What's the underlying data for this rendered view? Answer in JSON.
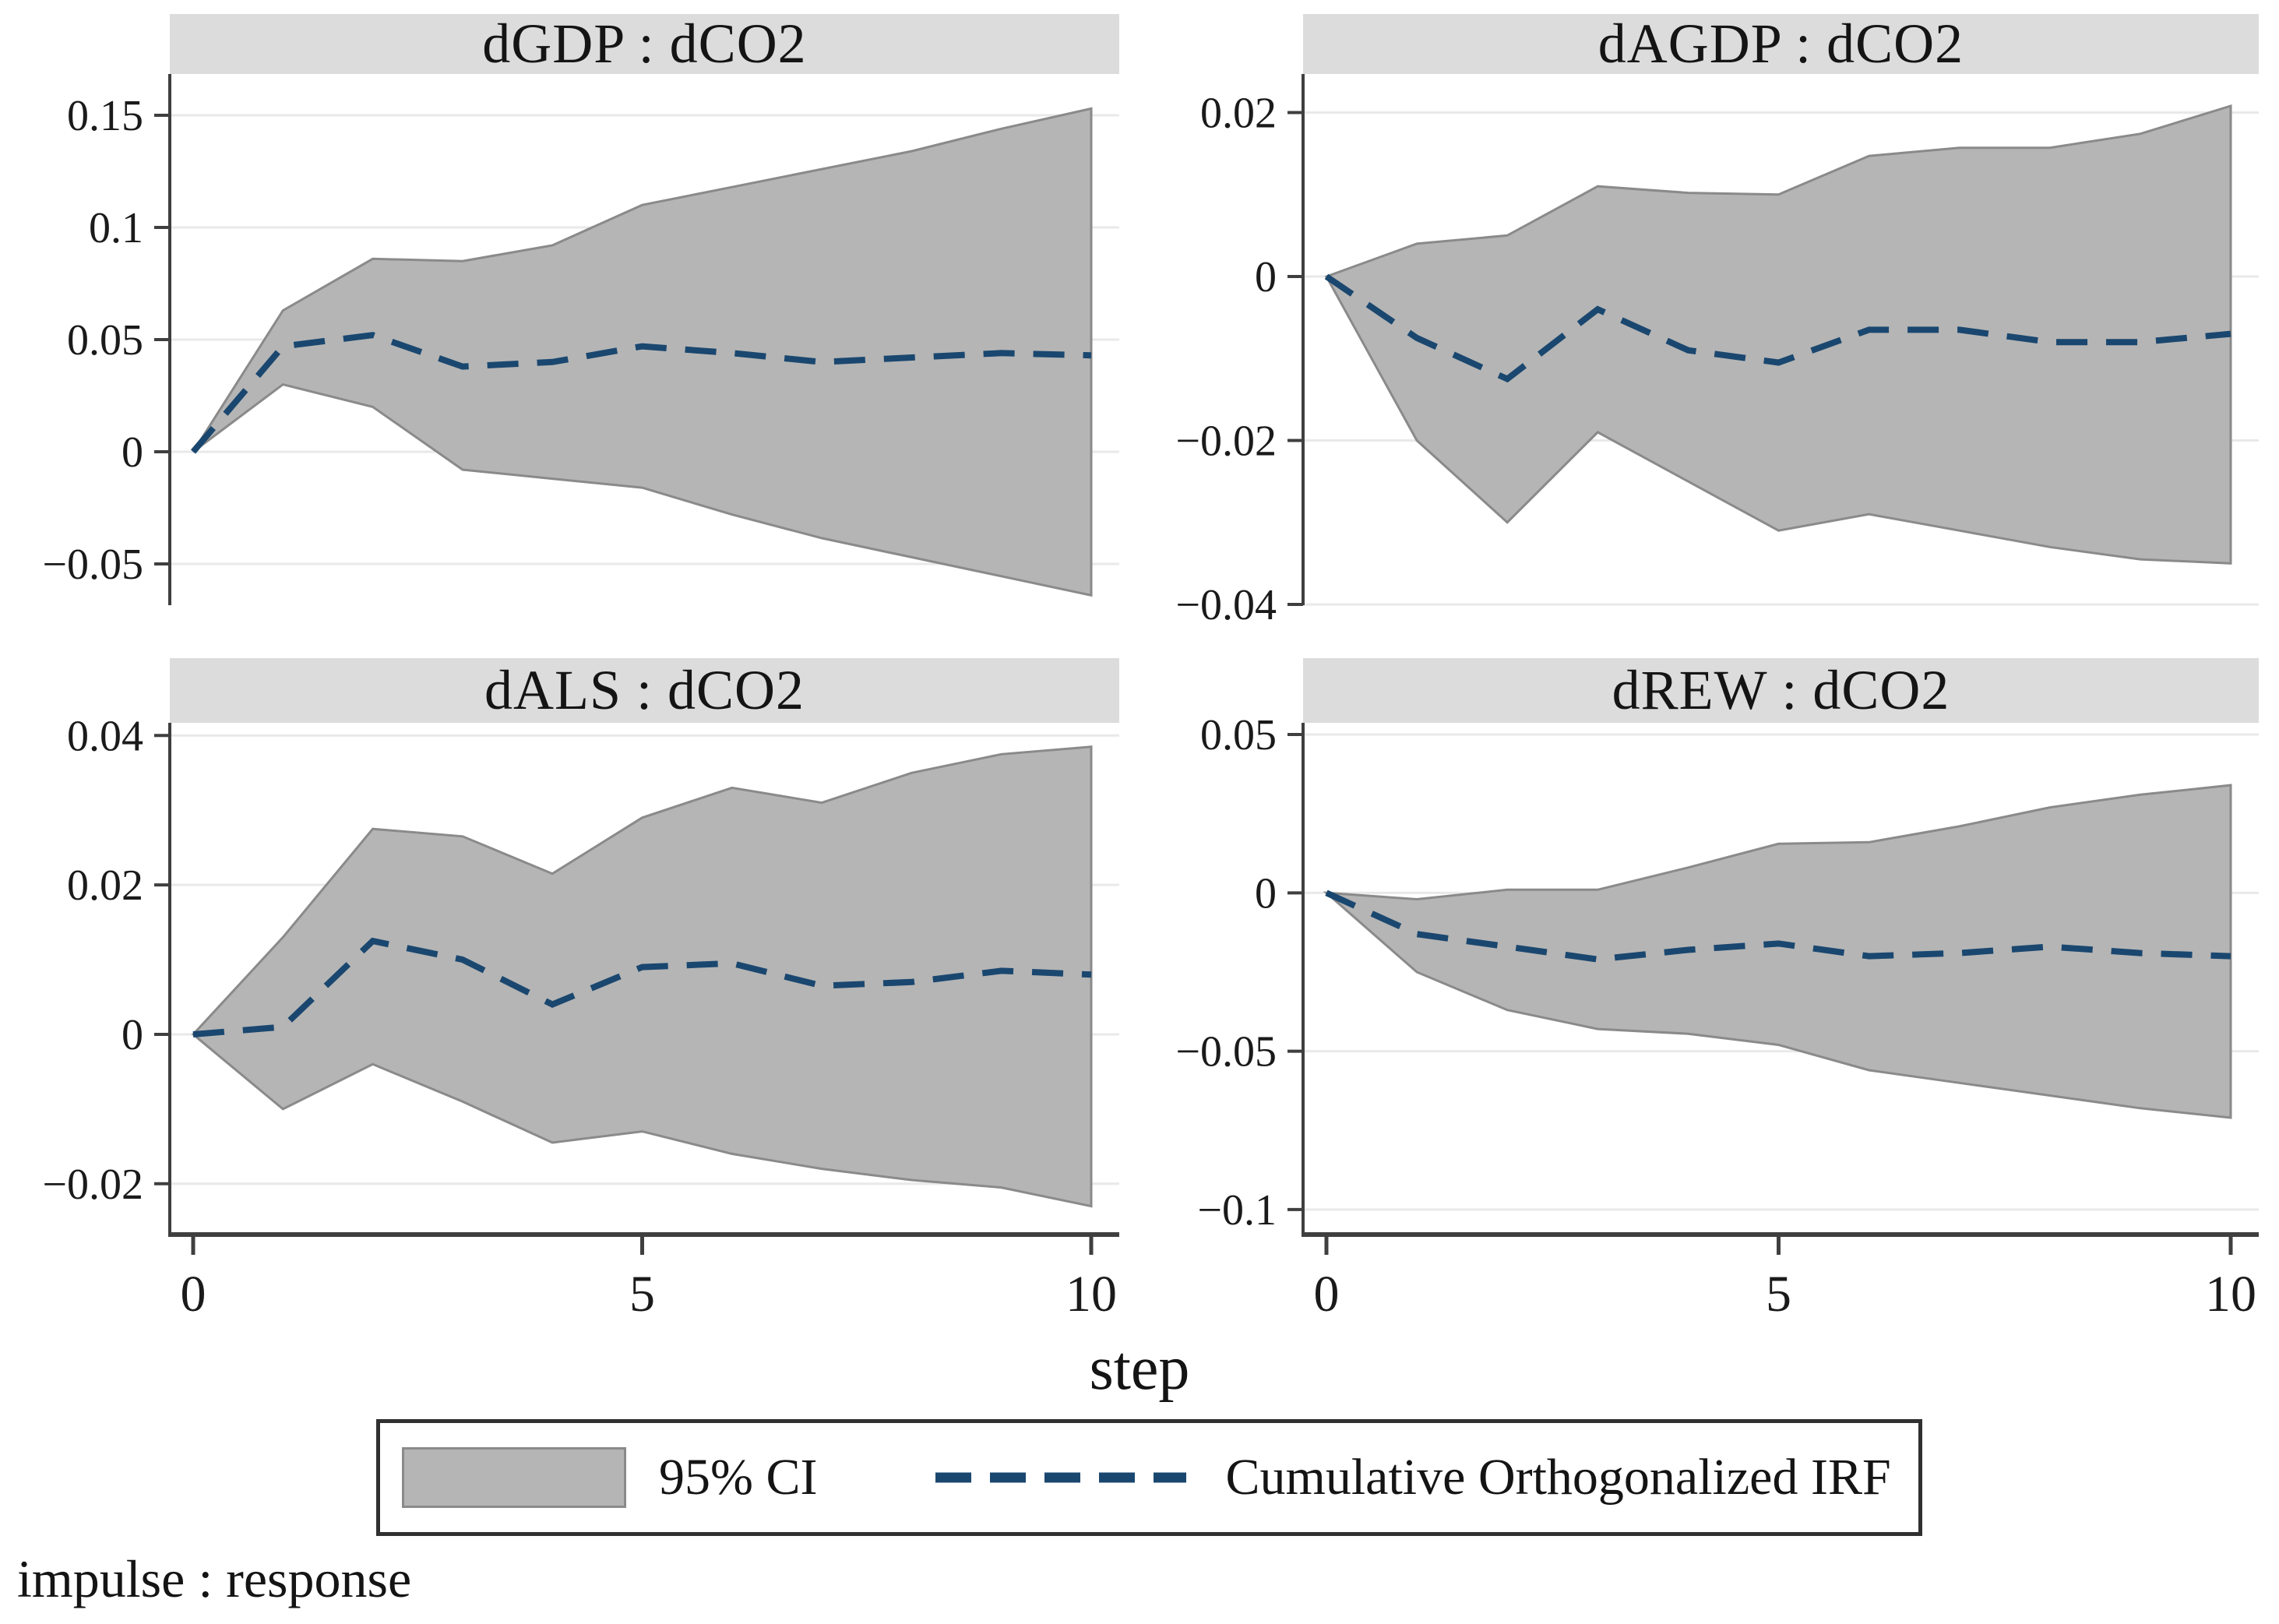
{
  "figure": {
    "xlabel": "step",
    "footnote": "impulse : response",
    "legend": {
      "ci_label": "95% CI",
      "irf_label": "Cumulative Orthogonalized IRF"
    },
    "colors": {
      "ci_fill": "#b5b5b5",
      "ci_edge": "#8a8a8a",
      "irf_line": "#1a476f",
      "axis": "#3f3f3f",
      "grid": "#e9e9e9",
      "strip_bg": "#dcdcdc",
      "text": "#1a1a1a",
      "legend_border": "#303030"
    }
  },
  "chart_data": [
    {
      "type": "area",
      "title": "dGDP : dCO2",
      "xlabel": "step",
      "x": [
        0,
        1,
        2,
        3,
        4,
        5,
        6,
        7,
        8,
        9,
        10
      ],
      "xticks": [
        {
          "value": 0,
          "label": "0"
        },
        {
          "value": 5,
          "label": "5"
        },
        {
          "value": 10,
          "label": "10"
        }
      ],
      "show_x_labels": false,
      "ylim": [
        -0.0684,
        0.1684
      ],
      "yticks": [
        {
          "value": 0.15,
          "label": "0.15"
        },
        {
          "value": 0.1,
          "label": "0.1"
        },
        {
          "value": 0.05,
          "label": "0.05"
        },
        {
          "value": 0,
          "label": "0"
        },
        {
          "value": -0.05,
          "label": "−0.05"
        }
      ],
      "series": [
        {
          "name": "95% CI upper",
          "values": [
            0,
            0.063,
            0.086,
            0.085,
            0.092,
            0.11,
            0.118,
            0.126,
            0.134,
            0.144,
            0.153
          ]
        },
        {
          "name": "95% CI lower",
          "values": [
            0,
            0.03,
            0.02,
            -0.008,
            -0.012,
            -0.016,
            -0.028,
            -0.0385,
            -0.047,
            -0.0555,
            -0.064
          ]
        },
        {
          "name": "Cumulative Orthogonalized IRF",
          "values": [
            0,
            0.047,
            0.052,
            0.038,
            0.04,
            0.047,
            0.044,
            0.04,
            0.042,
            0.044,
            0.043
          ]
        }
      ]
    },
    {
      "type": "area",
      "title": "dAGDP : dCO2",
      "xlabel": "step",
      "x": [
        0,
        1,
        2,
        3,
        4,
        5,
        6,
        7,
        8,
        9,
        10
      ],
      "xticks": [
        {
          "value": 0,
          "label": "0"
        },
        {
          "value": 5,
          "label": "5"
        },
        {
          "value": 10,
          "label": "10"
        }
      ],
      "show_x_labels": false,
      "ylim": [
        -0.0401,
        0.0247
      ],
      "yticks": [
        {
          "value": 0.02,
          "label": "0.02"
        },
        {
          "value": 0,
          "label": "0"
        },
        {
          "value": -0.02,
          "label": "−0.02"
        },
        {
          "value": -0.04,
          "label": "−0.04"
        }
      ],
      "series": [
        {
          "name": "95% CI upper",
          "values": [
            0,
            0.004,
            0.005,
            0.011,
            0.0102,
            0.01,
            0.0147,
            0.0157,
            0.0157,
            0.0174,
            0.0208
          ]
        },
        {
          "name": "95% CI lower",
          "values": [
            0,
            -0.02,
            -0.03,
            -0.019,
            -0.025,
            -0.031,
            -0.029,
            -0.031,
            -0.033,
            -0.0345,
            -0.035
          ]
        },
        {
          "name": "Cumulative Orthogonalized IRF",
          "values": [
            0,
            -0.0075,
            -0.0125,
            -0.004,
            -0.009,
            -0.0105,
            -0.0065,
            -0.0065,
            -0.008,
            -0.008,
            -0.007
          ]
        }
      ]
    },
    {
      "type": "area",
      "title": "dALS : dCO2",
      "xlabel": "step",
      "x": [
        0,
        1,
        2,
        3,
        4,
        5,
        6,
        7,
        8,
        9,
        10
      ],
      "xticks": [
        {
          "value": 0,
          "label": "0"
        },
        {
          "value": 5,
          "label": "5"
        },
        {
          "value": 10,
          "label": "10"
        }
      ],
      "show_x_labels": true,
      "ylim": [
        -0.0268,
        0.0417
      ],
      "yticks": [
        {
          "value": 0.04,
          "label": "0.04"
        },
        {
          "value": 0.02,
          "label": "0.02"
        },
        {
          "value": 0,
          "label": "0"
        },
        {
          "value": -0.02,
          "label": "−0.02"
        }
      ],
      "series": [
        {
          "name": "95% CI upper",
          "values": [
            0,
            0.013,
            0.0275,
            0.0265,
            0.0215,
            0.029,
            0.033,
            0.031,
            0.035,
            0.0375,
            0.0385
          ]
        },
        {
          "name": "95% CI lower",
          "values": [
            0,
            -0.01,
            -0.004,
            -0.009,
            -0.0145,
            -0.013,
            -0.016,
            -0.018,
            -0.0195,
            -0.0205,
            -0.023
          ]
        },
        {
          "name": "Cumulative Orthogonalized IRF",
          "values": [
            0,
            0.001,
            0.0125,
            0.01,
            0.004,
            0.009,
            0.0095,
            0.0065,
            0.007,
            0.0085,
            0.008
          ]
        }
      ]
    },
    {
      "type": "area",
      "title": "dREW : dCO2",
      "xlabel": "step",
      "x": [
        0,
        1,
        2,
        3,
        4,
        5,
        6,
        7,
        8,
        9,
        10
      ],
      "xticks": [
        {
          "value": 0,
          "label": "0"
        },
        {
          "value": 5,
          "label": "5"
        },
        {
          "value": 10,
          "label": "10"
        }
      ],
      "show_x_labels": true,
      "ylim": [
        -0.1079,
        0.0537
      ],
      "yticks": [
        {
          "value": 0.05,
          "label": "0.05"
        },
        {
          "value": 0,
          "label": "0"
        },
        {
          "value": -0.05,
          "label": "−0.05"
        },
        {
          "value": -0.1,
          "label": "−0.1"
        }
      ],
      "series": [
        {
          "name": "95% CI upper",
          "values": [
            0,
            -0.002,
            0.001,
            0.001,
            0.008,
            0.0155,
            0.016,
            0.021,
            0.027,
            0.031,
            0.034
          ]
        },
        {
          "name": "95% CI lower",
          "values": [
            0,
            -0.025,
            -0.037,
            -0.043,
            -0.0445,
            -0.048,
            -0.056,
            -0.06,
            -0.064,
            -0.068,
            -0.071
          ]
        },
        {
          "name": "Cumulative Orthogonalized IRF",
          "values": [
            0,
            -0.013,
            -0.017,
            -0.021,
            -0.018,
            -0.016,
            -0.02,
            -0.019,
            -0.017,
            -0.019,
            -0.02
          ]
        }
      ]
    }
  ]
}
